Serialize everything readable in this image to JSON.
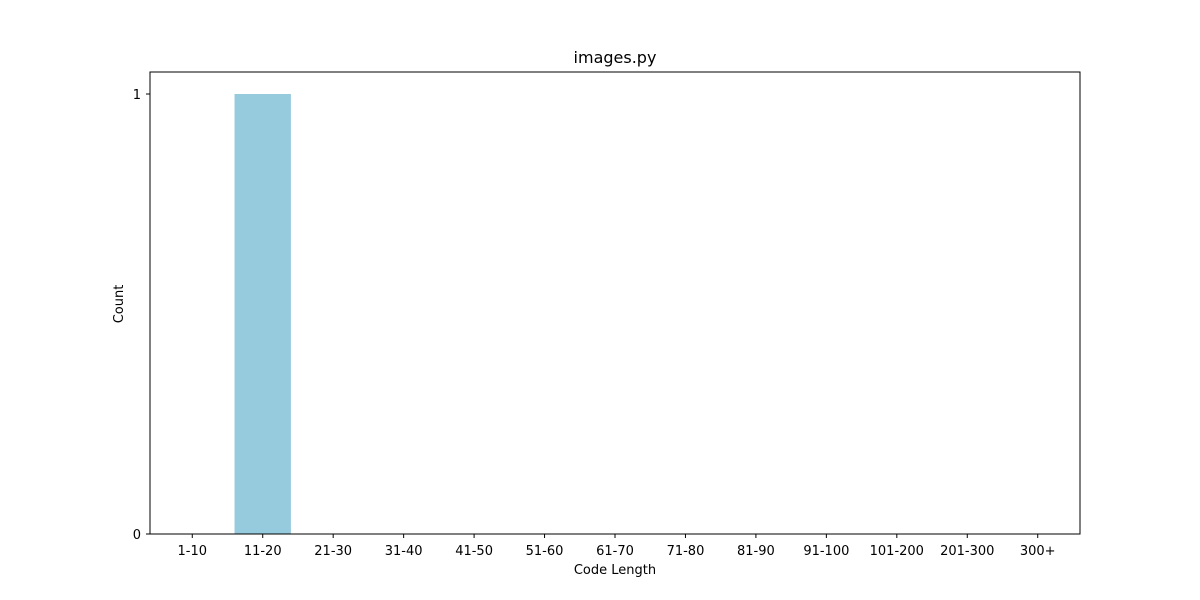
{
  "chart_data": {
    "type": "bar",
    "title": "images.py",
    "xlabel": "Code Length",
    "ylabel": "Count",
    "categories": [
      "1-10",
      "11-20",
      "21-30",
      "31-40",
      "41-50",
      "51-60",
      "61-70",
      "71-80",
      "81-90",
      "91-100",
      "101-200",
      "201-300",
      "300+"
    ],
    "values": [
      0,
      1,
      0,
      0,
      0,
      0,
      0,
      0,
      0,
      0,
      0,
      0,
      0
    ],
    "ylim": [
      0,
      1.05
    ],
    "yticks": [
      0,
      1
    ],
    "bar_color": "#96cadd",
    "grid": false,
    "legend": "none"
  }
}
